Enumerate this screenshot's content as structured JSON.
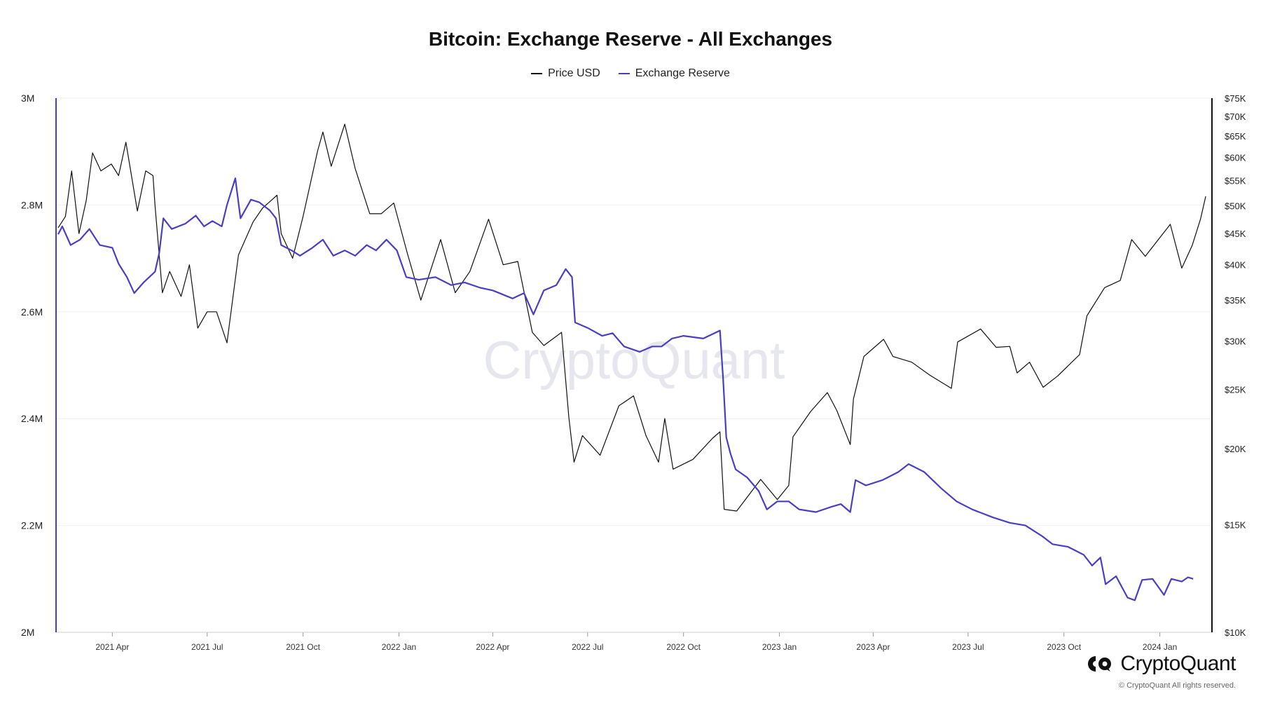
{
  "colors": {
    "price": "#111111",
    "reserve": "#4a3ec4",
    "axis_left": "#4a3ec4",
    "grid": "#f0f0f0"
  },
  "logo_icon": "cryptoquant-logo-icon",
  "footer": {
    "brand": "CryptoQuant",
    "copyright": "© CryptoQuant All rights reserved."
  },
  "watermark": "CryptoQuant",
  "chart_data": {
    "type": "line",
    "title": "Bitcoin: Exchange Reserve - All Exchanges",
    "legend_position": "top-center",
    "grid": true,
    "x_range": [
      "2021-02-06",
      "2024-02-20"
    ],
    "x_ticks": [
      {
        "date": "2021-04-01",
        "label": "2021 Apr"
      },
      {
        "date": "2021-07-01",
        "label": "2021 Jul"
      },
      {
        "date": "2021-10-01",
        "label": "2021 Oct"
      },
      {
        "date": "2022-01-01",
        "label": "2022 Jan"
      },
      {
        "date": "2022-04-01",
        "label": "2022 Apr"
      },
      {
        "date": "2022-07-01",
        "label": "2022 Jul"
      },
      {
        "date": "2022-10-01",
        "label": "2022 Oct"
      },
      {
        "date": "2023-01-01",
        "label": "2023 Jan"
      },
      {
        "date": "2023-04-01",
        "label": "2023 Apr"
      },
      {
        "date": "2023-07-01",
        "label": "2023 Jul"
      },
      {
        "date": "2023-10-01",
        "label": "2023 Oct"
      },
      {
        "date": "2024-01-01",
        "label": "2024 Jan"
      }
    ],
    "y_left": {
      "range": [
        2000000,
        3000000
      ],
      "ticks": [
        {
          "value": 2000000,
          "label": "2M"
        },
        {
          "value": 2200000,
          "label": "2.2M"
        },
        {
          "value": 2400000,
          "label": "2.4M"
        },
        {
          "value": 2600000,
          "label": "2.6M"
        },
        {
          "value": 2800000,
          "label": "2.8M"
        },
        {
          "value": 3000000,
          "label": "3M"
        }
      ]
    },
    "y_right": {
      "scale": "log",
      "range": [
        10000,
        75000
      ],
      "ticks": [
        {
          "value": 10000,
          "label": "$10K"
        },
        {
          "value": 15000,
          "label": "$15K"
        },
        {
          "value": 20000,
          "label": "$20K"
        },
        {
          "value": 25000,
          "label": "$25K"
        },
        {
          "value": 30000,
          "label": "$30K"
        },
        {
          "value": 35000,
          "label": "$35K"
        },
        {
          "value": 40000,
          "label": "$40K"
        },
        {
          "value": 45000,
          "label": "$45K"
        },
        {
          "value": 50000,
          "label": "$50K"
        },
        {
          "value": 55000,
          "label": "$55K"
        },
        {
          "value": 60000,
          "label": "$60K"
        },
        {
          "value": 65000,
          "label": "$65K"
        },
        {
          "value": 70000,
          "label": "$70K"
        },
        {
          "value": 75000,
          "label": "$75K"
        }
      ]
    },
    "series": [
      {
        "name": "Price USD",
        "axis": "right",
        "points": [
          [
            "2021-02-08",
            46000
          ],
          [
            "2021-02-15",
            48000
          ],
          [
            "2021-02-21",
            57000
          ],
          [
            "2021-02-28",
            45000
          ],
          [
            "2021-03-07",
            51000
          ],
          [
            "2021-03-13",
            61000
          ],
          [
            "2021-03-21",
            57000
          ],
          [
            "2021-03-31",
            58500
          ],
          [
            "2021-04-07",
            56000
          ],
          [
            "2021-04-14",
            63500
          ],
          [
            "2021-04-25",
            49000
          ],
          [
            "2021-05-03",
            57000
          ],
          [
            "2021-05-10",
            56000
          ],
          [
            "2021-05-12",
            50000
          ],
          [
            "2021-05-19",
            36000
          ],
          [
            "2021-05-26",
            39000
          ],
          [
            "2021-06-06",
            35500
          ],
          [
            "2021-06-14",
            40000
          ],
          [
            "2021-06-22",
            31500
          ],
          [
            "2021-07-01",
            33500
          ],
          [
            "2021-07-10",
            33500
          ],
          [
            "2021-07-20",
            29800
          ],
          [
            "2021-07-31",
            41500
          ],
          [
            "2021-08-14",
            47000
          ],
          [
            "2021-08-23",
            49500
          ],
          [
            "2021-09-06",
            52000
          ],
          [
            "2021-09-10",
            45000
          ],
          [
            "2021-09-21",
            41000
          ],
          [
            "2021-10-01",
            48000
          ],
          [
            "2021-10-15",
            61500
          ],
          [
            "2021-10-20",
            66000
          ],
          [
            "2021-10-28",
            58000
          ],
          [
            "2021-11-10",
            68000
          ],
          [
            "2021-11-20",
            57500
          ],
          [
            "2021-12-04",
            48500
          ],
          [
            "2021-12-15",
            48500
          ],
          [
            "2021-12-27",
            50500
          ],
          [
            "2022-01-09",
            41800
          ],
          [
            "2022-01-22",
            35000
          ],
          [
            "2022-02-10",
            44000
          ],
          [
            "2022-02-24",
            36000
          ],
          [
            "2022-03-10",
            39000
          ],
          [
            "2022-03-28",
            47500
          ],
          [
            "2022-04-11",
            40000
          ],
          [
            "2022-04-25",
            40500
          ],
          [
            "2022-05-09",
            31000
          ],
          [
            "2022-05-20",
            29500
          ],
          [
            "2022-06-06",
            31000
          ],
          [
            "2022-06-13",
            22500
          ],
          [
            "2022-06-18",
            19000
          ],
          [
            "2022-06-26",
            21000
          ],
          [
            "2022-07-13",
            19500
          ],
          [
            "2022-07-31",
            23500
          ],
          [
            "2022-08-14",
            24400
          ],
          [
            "2022-08-26",
            21000
          ],
          [
            "2022-09-07",
            19000
          ],
          [
            "2022-09-13",
            22400
          ],
          [
            "2022-09-21",
            18500
          ],
          [
            "2022-10-10",
            19200
          ],
          [
            "2022-10-29",
            20800
          ],
          [
            "2022-11-05",
            21300
          ],
          [
            "2022-11-09",
            15900
          ],
          [
            "2022-11-21",
            15800
          ],
          [
            "2022-12-14",
            17800
          ],
          [
            "2022-12-30",
            16500
          ],
          [
            "2023-01-10",
            17400
          ],
          [
            "2023-01-14",
            20900
          ],
          [
            "2023-01-31",
            23000
          ],
          [
            "2023-02-16",
            24700
          ],
          [
            "2023-02-25",
            23100
          ],
          [
            "2023-03-10",
            20300
          ],
          [
            "2023-03-13",
            24100
          ],
          [
            "2023-03-23",
            28300
          ],
          [
            "2023-04-11",
            30200
          ],
          [
            "2023-04-20",
            28300
          ],
          [
            "2023-05-08",
            27700
          ],
          [
            "2023-05-25",
            26400
          ],
          [
            "2023-06-15",
            25100
          ],
          [
            "2023-06-21",
            29900
          ],
          [
            "2023-07-13",
            31400
          ],
          [
            "2023-07-28",
            29300
          ],
          [
            "2023-08-10",
            29400
          ],
          [
            "2023-08-17",
            26600
          ],
          [
            "2023-08-29",
            27700
          ],
          [
            "2023-09-11",
            25200
          ],
          [
            "2023-09-25",
            26300
          ],
          [
            "2023-10-16",
            28500
          ],
          [
            "2023-10-23",
            33000
          ],
          [
            "2023-11-09",
            36700
          ],
          [
            "2023-11-24",
            37700
          ],
          [
            "2023-12-05",
            44000
          ],
          [
            "2023-12-18",
            41300
          ],
          [
            "2024-01-11",
            46600
          ],
          [
            "2024-01-22",
            39500
          ],
          [
            "2024-02-01",
            43000
          ],
          [
            "2024-02-09",
            47500
          ],
          [
            "2024-02-14",
            51800
          ]
        ]
      },
      {
        "name": "Exchange Reserve",
        "axis": "left",
        "points": [
          [
            "2021-02-08",
            2745000
          ],
          [
            "2021-02-12",
            2760000
          ],
          [
            "2021-02-20",
            2725000
          ],
          [
            "2021-03-01",
            2735000
          ],
          [
            "2021-03-10",
            2755000
          ],
          [
            "2021-03-20",
            2725000
          ],
          [
            "2021-04-01",
            2720000
          ],
          [
            "2021-04-07",
            2690000
          ],
          [
            "2021-04-15",
            2665000
          ],
          [
            "2021-04-22",
            2635000
          ],
          [
            "2021-05-01",
            2655000
          ],
          [
            "2021-05-12",
            2675000
          ],
          [
            "2021-05-16",
            2710000
          ],
          [
            "2021-05-20",
            2775000
          ],
          [
            "2021-05-28",
            2755000
          ],
          [
            "2021-06-10",
            2765000
          ],
          [
            "2021-06-20",
            2780000
          ],
          [
            "2021-06-28",
            2760000
          ],
          [
            "2021-07-06",
            2770000
          ],
          [
            "2021-07-15",
            2760000
          ],
          [
            "2021-07-20",
            2800000
          ],
          [
            "2021-07-28",
            2850000
          ],
          [
            "2021-08-02",
            2775000
          ],
          [
            "2021-08-12",
            2810000
          ],
          [
            "2021-08-20",
            2805000
          ],
          [
            "2021-08-30",
            2790000
          ],
          [
            "2021-09-05",
            2775000
          ],
          [
            "2021-09-10",
            2725000
          ],
          [
            "2021-09-20",
            2715000
          ],
          [
            "2021-09-28",
            2705000
          ],
          [
            "2021-10-10",
            2720000
          ],
          [
            "2021-10-20",
            2735000
          ],
          [
            "2021-10-30",
            2705000
          ],
          [
            "2021-11-10",
            2715000
          ],
          [
            "2021-11-20",
            2705000
          ],
          [
            "2021-12-01",
            2725000
          ],
          [
            "2021-12-10",
            2715000
          ],
          [
            "2021-12-20",
            2735000
          ],
          [
            "2021-12-30",
            2715000
          ],
          [
            "2022-01-08",
            2665000
          ],
          [
            "2022-01-20",
            2660000
          ],
          [
            "2022-02-05",
            2665000
          ],
          [
            "2022-02-20",
            2650000
          ],
          [
            "2022-03-05",
            2655000
          ],
          [
            "2022-03-20",
            2645000
          ],
          [
            "2022-04-01",
            2640000
          ],
          [
            "2022-04-20",
            2625000
          ],
          [
            "2022-05-01",
            2635000
          ],
          [
            "2022-05-10",
            2595000
          ],
          [
            "2022-05-20",
            2640000
          ],
          [
            "2022-06-01",
            2650000
          ],
          [
            "2022-06-10",
            2680000
          ],
          [
            "2022-06-16",
            2665000
          ],
          [
            "2022-06-19",
            2580000
          ],
          [
            "2022-07-01",
            2570000
          ],
          [
            "2022-07-15",
            2555000
          ],
          [
            "2022-07-25",
            2560000
          ],
          [
            "2022-08-05",
            2535000
          ],
          [
            "2022-08-20",
            2525000
          ],
          [
            "2022-09-01",
            2535000
          ],
          [
            "2022-09-10",
            2535000
          ],
          [
            "2022-09-20",
            2550000
          ],
          [
            "2022-10-01",
            2555000
          ],
          [
            "2022-10-20",
            2550000
          ],
          [
            "2022-11-05",
            2565000
          ],
          [
            "2022-11-08",
            2475000
          ],
          [
            "2022-11-11",
            2365000
          ],
          [
            "2022-11-15",
            2335000
          ],
          [
            "2022-11-20",
            2305000
          ],
          [
            "2022-12-01",
            2290000
          ],
          [
            "2022-12-12",
            2265000
          ],
          [
            "2022-12-20",
            2230000
          ],
          [
            "2022-12-30",
            2245000
          ],
          [
            "2023-01-10",
            2245000
          ],
          [
            "2023-01-20",
            2230000
          ],
          [
            "2023-02-05",
            2225000
          ],
          [
            "2023-02-20",
            2235000
          ],
          [
            "2023-03-01",
            2240000
          ],
          [
            "2023-03-10",
            2225000
          ],
          [
            "2023-03-15",
            2285000
          ],
          [
            "2023-03-25",
            2275000
          ],
          [
            "2023-04-10",
            2285000
          ],
          [
            "2023-04-25",
            2300000
          ],
          [
            "2023-05-05",
            2315000
          ],
          [
            "2023-05-20",
            2300000
          ],
          [
            "2023-06-05",
            2270000
          ],
          [
            "2023-06-20",
            2245000
          ],
          [
            "2023-07-05",
            2230000
          ],
          [
            "2023-07-25",
            2215000
          ],
          [
            "2023-08-10",
            2205000
          ],
          [
            "2023-08-25",
            2200000
          ],
          [
            "2023-09-10",
            2180000
          ],
          [
            "2023-09-20",
            2165000
          ],
          [
            "2023-10-05",
            2160000
          ],
          [
            "2023-10-20",
            2145000
          ],
          [
            "2023-10-28",
            2125000
          ],
          [
            "2023-11-05",
            2140000
          ],
          [
            "2023-11-10",
            2090000
          ],
          [
            "2023-11-20",
            2105000
          ],
          [
            "2023-12-01",
            2065000
          ],
          [
            "2023-12-08",
            2060000
          ],
          [
            "2023-12-15",
            2098000
          ],
          [
            "2023-12-25",
            2100000
          ],
          [
            "2024-01-05",
            2070000
          ],
          [
            "2024-01-12",
            2100000
          ],
          [
            "2024-01-22",
            2095000
          ],
          [
            "2024-01-28",
            2103000
          ],
          [
            "2024-02-02",
            2100000
          ]
        ]
      }
    ]
  }
}
